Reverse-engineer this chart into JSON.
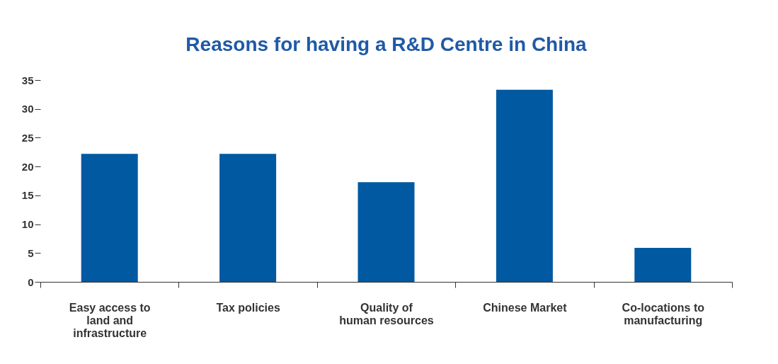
{
  "chart_data": {
    "type": "bar",
    "title": "Reasons for having a R&D Centre in China",
    "categories": [
      "Easy access to land and infrastructure",
      "Tax policies",
      "Quality of human resources",
      "Chinese Market",
      "Co-locations to manufacturing"
    ],
    "values": [
      22.2,
      22.2,
      17.3,
      33.3,
      5.9
    ],
    "color": "#0059a1",
    "ylim": [
      0,
      35
    ],
    "yticks": [
      0,
      5,
      10,
      15,
      20,
      25,
      30,
      35
    ],
    "grid": false
  }
}
